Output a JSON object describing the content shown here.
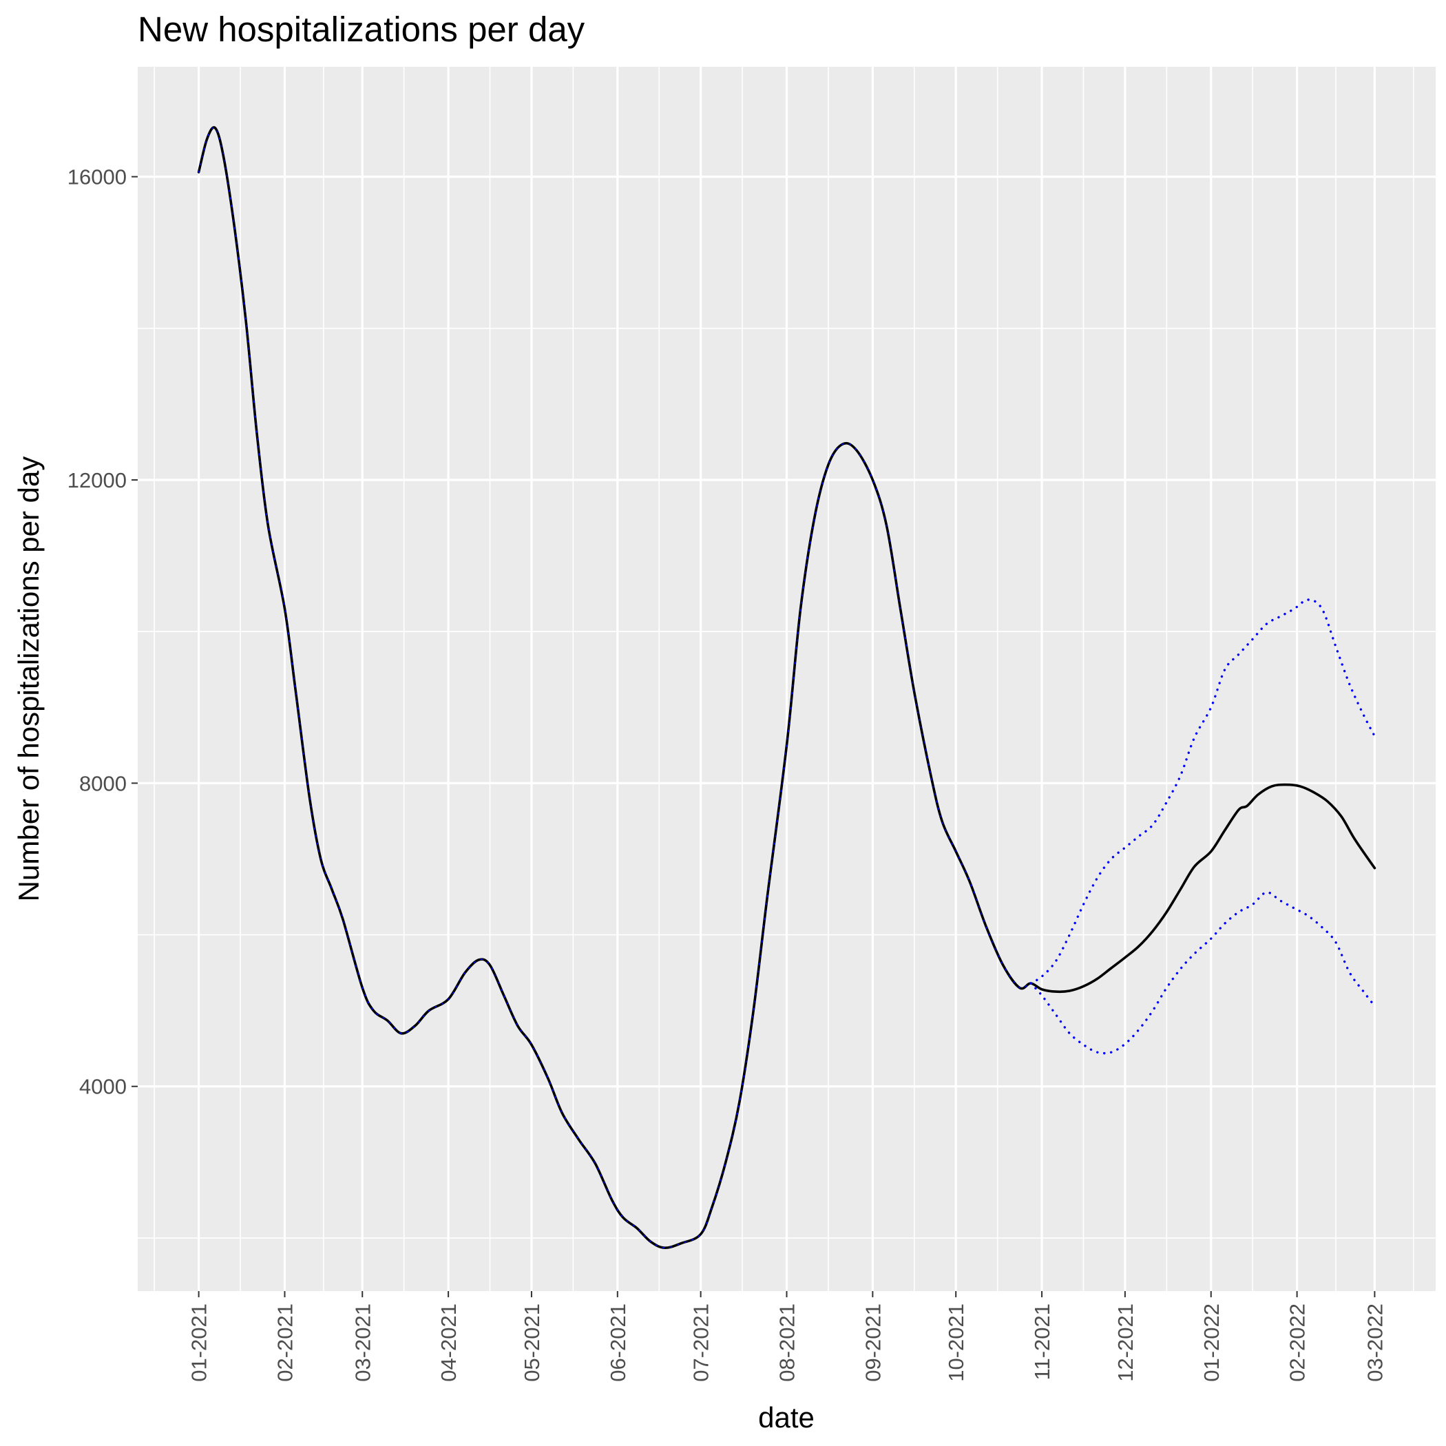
{
  "chart_data": {
    "type": "line",
    "title": "New hospitalizations per day",
    "xlabel": "date",
    "ylabel": "Number of hospitalizations per day",
    "x_tick_labels": [
      "01-2021",
      "02-2021",
      "03-2021",
      "04-2021",
      "05-2021",
      "06-2021",
      "07-2021",
      "08-2021",
      "09-2021",
      "10-2021",
      "11-2021",
      "12-2021",
      "01-2022",
      "02-2022",
      "03-2022"
    ],
    "x_tick_dates": [
      "2021-01-01",
      "2021-02-01",
      "2021-03-01",
      "2021-04-01",
      "2021-05-01",
      "2021-06-01",
      "2021-07-01",
      "2021-08-01",
      "2021-09-01",
      "2021-10-01",
      "2021-11-01",
      "2021-12-01",
      "2022-01-01",
      "2022-02-01",
      "2022-03-01"
    ],
    "xlim": [
      "2020-12-10",
      "2022-03-23"
    ],
    "y_ticks": [
      4000,
      8000,
      12000,
      16000
    ],
    "ylim": [
      1300,
      17450
    ],
    "grid": true,
    "background": "#ebebeb",
    "series": [
      {
        "role": "central",
        "color": "#000000",
        "style": "solid",
        "points": [
          [
            "2021-01-01",
            16060
          ],
          [
            "2021-01-04",
            16500
          ],
          [
            "2021-01-07",
            16640
          ],
          [
            "2021-01-10",
            16250
          ],
          [
            "2021-01-14",
            15300
          ],
          [
            "2021-01-18",
            14100
          ],
          [
            "2021-01-22",
            12600
          ],
          [
            "2021-01-26",
            11400
          ],
          [
            "2021-02-01",
            10300
          ],
          [
            "2021-02-05",
            9200
          ],
          [
            "2021-02-10",
            7800
          ],
          [
            "2021-02-14",
            7000
          ],
          [
            "2021-02-18",
            6600
          ],
          [
            "2021-02-22",
            6200
          ],
          [
            "2021-03-01",
            5300
          ],
          [
            "2021-03-05",
            5000
          ],
          [
            "2021-03-10",
            4870
          ],
          [
            "2021-03-15",
            4700
          ],
          [
            "2021-03-20",
            4800
          ],
          [
            "2021-03-25",
            5000
          ],
          [
            "2021-04-01",
            5150
          ],
          [
            "2021-04-07",
            5500
          ],
          [
            "2021-04-12",
            5670
          ],
          [
            "2021-04-16",
            5600
          ],
          [
            "2021-04-21",
            5200
          ],
          [
            "2021-04-26",
            4800
          ],
          [
            "2021-05-01",
            4550
          ],
          [
            "2021-05-07",
            4100
          ],
          [
            "2021-05-12",
            3650
          ],
          [
            "2021-05-18",
            3300
          ],
          [
            "2021-05-24",
            2980
          ],
          [
            "2021-05-30",
            2500
          ],
          [
            "2021-06-03",
            2270
          ],
          [
            "2021-06-08",
            2130
          ],
          [
            "2021-06-13",
            1950
          ],
          [
            "2021-06-18",
            1870
          ],
          [
            "2021-06-24",
            1930
          ],
          [
            "2021-07-01",
            2050
          ],
          [
            "2021-07-05",
            2400
          ],
          [
            "2021-07-10",
            3000
          ],
          [
            "2021-07-15",
            3800
          ],
          [
            "2021-07-20",
            5000
          ],
          [
            "2021-07-25",
            6500
          ],
          [
            "2021-08-01",
            8500
          ],
          [
            "2021-08-06",
            10300
          ],
          [
            "2021-08-11",
            11500
          ],
          [
            "2021-08-16",
            12200
          ],
          [
            "2021-08-21",
            12470
          ],
          [
            "2021-08-26",
            12400
          ],
          [
            "2021-09-01",
            12000
          ],
          [
            "2021-09-06",
            11400
          ],
          [
            "2021-09-11",
            10300
          ],
          [
            "2021-09-16",
            9200
          ],
          [
            "2021-09-22",
            8100
          ],
          [
            "2021-09-26",
            7500
          ],
          [
            "2021-10-01",
            7100
          ],
          [
            "2021-10-06",
            6700
          ],
          [
            "2021-10-12",
            6100
          ],
          [
            "2021-10-18",
            5600
          ],
          [
            "2021-10-24",
            5300
          ],
          [
            "2021-10-28",
            5360
          ],
          [
            "2021-11-01",
            5280
          ],
          [
            "2021-11-06",
            5250
          ],
          [
            "2021-11-11",
            5260
          ],
          [
            "2021-11-16",
            5320
          ],
          [
            "2021-11-21",
            5420
          ],
          [
            "2021-11-26",
            5560
          ],
          [
            "2021-12-01",
            5700
          ],
          [
            "2021-12-06",
            5850
          ],
          [
            "2021-12-11",
            6050
          ],
          [
            "2021-12-16",
            6300
          ],
          [
            "2021-12-21",
            6600
          ],
          [
            "2021-12-26",
            6900
          ],
          [
            "2022-01-01",
            7100
          ],
          [
            "2022-01-06",
            7380
          ],
          [
            "2022-01-11",
            7650
          ],
          [
            "2022-01-14",
            7700
          ],
          [
            "2022-01-18",
            7850
          ],
          [
            "2022-01-23",
            7960
          ],
          [
            "2022-01-28",
            7980
          ],
          [
            "2022-02-02",
            7960
          ],
          [
            "2022-02-07",
            7880
          ],
          [
            "2022-02-12",
            7760
          ],
          [
            "2022-02-17",
            7560
          ],
          [
            "2022-02-22",
            7250
          ],
          [
            "2022-03-01",
            6880
          ]
        ]
      },
      {
        "role": "upper",
        "color": "#0000ff",
        "style": "dotted",
        "points": [
          [
            "2021-10-28",
            5360
          ],
          [
            "2021-11-01",
            5450
          ],
          [
            "2021-11-06",
            5650
          ],
          [
            "2021-11-11",
            6000
          ],
          [
            "2021-11-16",
            6400
          ],
          [
            "2021-11-21",
            6750
          ],
          [
            "2021-11-26",
            7000
          ],
          [
            "2021-12-01",
            7150
          ],
          [
            "2021-12-06",
            7300
          ],
          [
            "2021-12-11",
            7450
          ],
          [
            "2021-12-16",
            7750
          ],
          [
            "2021-12-21",
            8100
          ],
          [
            "2021-12-26",
            8600
          ],
          [
            "2022-01-01",
            9000
          ],
          [
            "2022-01-06",
            9500
          ],
          [
            "2022-01-11",
            9700
          ],
          [
            "2022-01-16",
            9900
          ],
          [
            "2022-01-21",
            10100
          ],
          [
            "2022-01-26",
            10200
          ],
          [
            "2022-01-31",
            10300
          ],
          [
            "2022-02-05",
            10420
          ],
          [
            "2022-02-10",
            10300
          ],
          [
            "2022-02-15",
            9800
          ],
          [
            "2022-02-20",
            9300
          ],
          [
            "2022-02-25",
            8900
          ],
          [
            "2022-03-01",
            8620
          ]
        ]
      },
      {
        "role": "lower",
        "color": "#0000ff",
        "style": "dotted",
        "points": [
          [
            "2021-10-28",
            5360
          ],
          [
            "2021-11-01",
            5200
          ],
          [
            "2021-11-06",
            4950
          ],
          [
            "2021-11-11",
            4700
          ],
          [
            "2021-11-16",
            4550
          ],
          [
            "2021-11-21",
            4450
          ],
          [
            "2021-11-26",
            4450
          ],
          [
            "2021-12-01",
            4560
          ],
          [
            "2021-12-06",
            4750
          ],
          [
            "2021-12-11",
            5000
          ],
          [
            "2021-12-16",
            5300
          ],
          [
            "2021-12-21",
            5550
          ],
          [
            "2021-12-26",
            5750
          ],
          [
            "2022-01-01",
            5950
          ],
          [
            "2022-01-06",
            6150
          ],
          [
            "2022-01-11",
            6300
          ],
          [
            "2022-01-16",
            6400
          ],
          [
            "2022-01-21",
            6560
          ],
          [
            "2022-01-26",
            6450
          ],
          [
            "2022-01-31",
            6350
          ],
          [
            "2022-02-05",
            6250
          ],
          [
            "2022-02-10",
            6100
          ],
          [
            "2022-02-15",
            5900
          ],
          [
            "2022-02-20",
            5500
          ],
          [
            "2022-02-25",
            5250
          ],
          [
            "2022-03-01",
            5060
          ]
        ]
      }
    ]
  }
}
